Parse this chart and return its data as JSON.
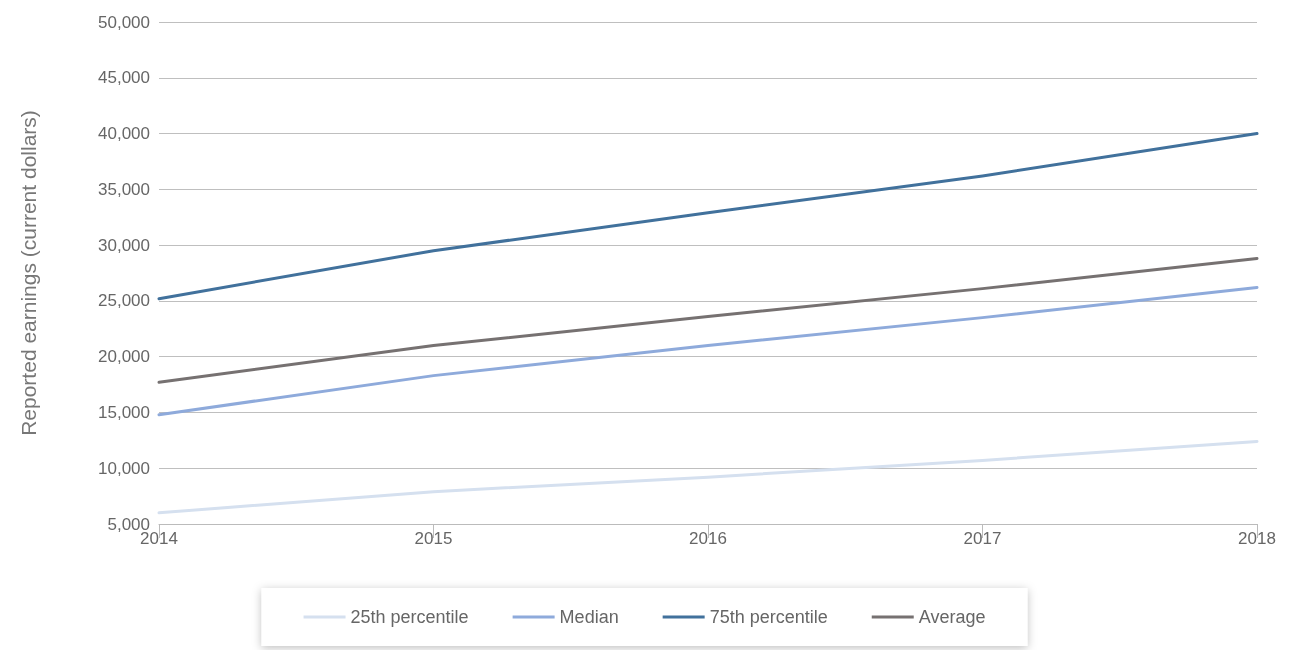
{
  "chart_data": {
    "type": "line",
    "ylabel": "Reported earnings (current dollars)",
    "x": [
      2014,
      2015,
      2016,
      2017,
      2018
    ],
    "xlim": [
      2014,
      2018
    ],
    "xticks": [
      2014,
      2015,
      2016,
      2017,
      2018
    ],
    "ylim": [
      5000,
      50000
    ],
    "yticks": [
      {
        "value": 5000,
        "label": "5,000"
      },
      {
        "value": 10000,
        "label": "10,000"
      },
      {
        "value": 15000,
        "label": "15,000"
      },
      {
        "value": 20000,
        "label": "20,000"
      },
      {
        "value": 25000,
        "label": "25,000"
      },
      {
        "value": 30000,
        "label": "30,000"
      },
      {
        "value": 35000,
        "label": "35,000"
      },
      {
        "value": 40000,
        "label": "40,000"
      },
      {
        "value": 45000,
        "label": "45,000"
      },
      {
        "value": 50000,
        "label": "50,000"
      }
    ],
    "grid": "y",
    "legend": "bottom",
    "marker": "none",
    "line_style": "solid",
    "series": [
      {
        "name": "25th percentile",
        "color": "#d5e0ef",
        "values": [
          6000,
          7900,
          9200,
          10700,
          12400
        ]
      },
      {
        "name": "Median",
        "color": "#8eaadb",
        "values": [
          14800,
          18300,
          21000,
          23500,
          26200
        ]
      },
      {
        "name": "75th percentile",
        "color": "#41719c",
        "values": [
          25200,
          29500,
          32900,
          36200,
          40000
        ]
      },
      {
        "name": "Average",
        "color": "#767171",
        "values": [
          17700,
          21000,
          23600,
          26100,
          28800
        ]
      }
    ]
  }
}
